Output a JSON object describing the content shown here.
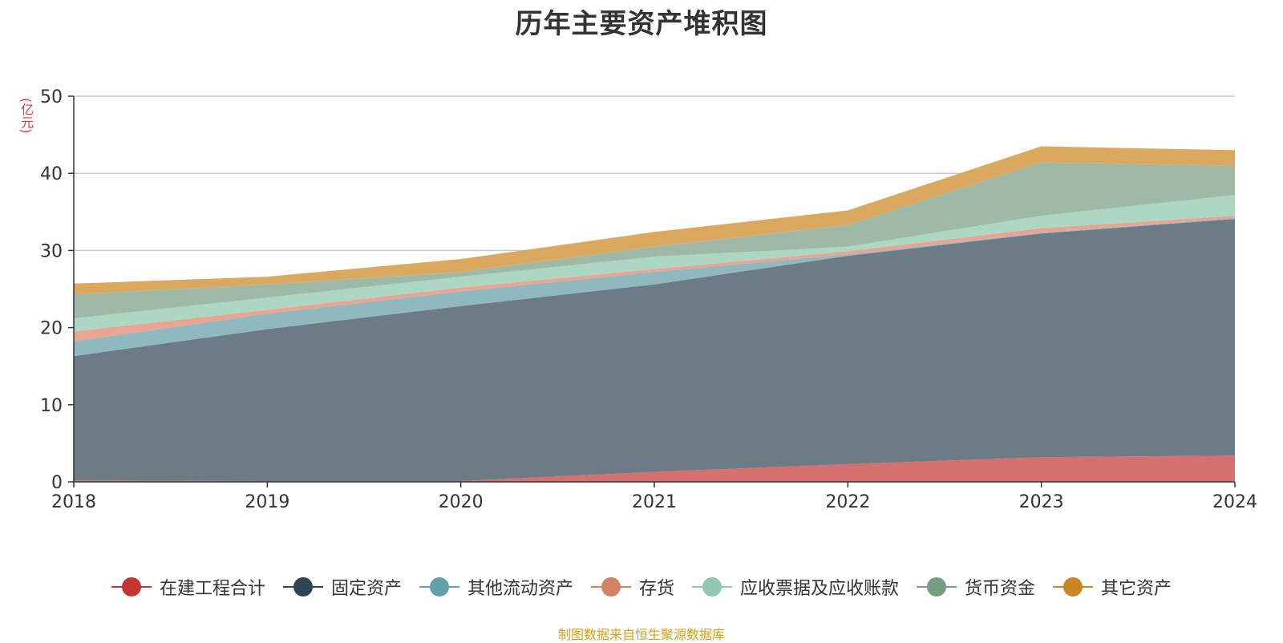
{
  "title": "历年主要资产堆积图",
  "unit": "(亿元)",
  "source": "制图数据来自恒生聚源数据库",
  "chart_data": {
    "type": "area",
    "stacked": true,
    "x": [
      "2018",
      "2019",
      "2020",
      "2021",
      "2022",
      "2023",
      "2024"
    ],
    "ylim": [
      0,
      50
    ],
    "yticks": [
      0,
      10,
      20,
      30,
      40,
      50
    ],
    "grid": true,
    "legend_position": "bottom",
    "series": [
      {
        "name": "在建工程合计",
        "color": "#c23531",
        "fill": "#d4706e",
        "values": [
          0.2,
          0.1,
          0.1,
          1.3,
          2.3,
          3.2,
          3.4
        ]
      },
      {
        "name": "固定资产",
        "color": "#2f4554",
        "fill": "#6d7b86",
        "values": [
          16.1,
          19.7,
          22.7,
          24.3,
          27.0,
          29.0,
          30.7
        ]
      },
      {
        "name": "其他流动资产",
        "color": "#61a0a8",
        "fill": "#8fb8bf",
        "values": [
          1.9,
          2.0,
          1.9,
          1.6,
          0.2,
          0.1,
          0.1
        ]
      },
      {
        "name": "存货",
        "color": "#d48265",
        "fill": "#e8a593",
        "values": [
          1.3,
          0.5,
          0.5,
          0.4,
          0.4,
          0.6,
          0.3
        ]
      },
      {
        "name": "应收票据及应收账款",
        "color": "#91c7ae",
        "fill": "#acd7c3",
        "values": [
          1.7,
          1.6,
          1.4,
          1.6,
          0.6,
          1.6,
          2.7
        ]
      },
      {
        "name": "货币资金",
        "color": "#749f83",
        "fill": "#9eb9a5",
        "values": [
          3.1,
          1.7,
          0.6,
          1.3,
          2.8,
          6.9,
          3.8
        ]
      },
      {
        "name": "其它资产",
        "color": "#ca8622",
        "fill": "#daa95f",
        "values": [
          1.4,
          1.0,
          1.7,
          1.9,
          1.9,
          2.1,
          2.0
        ]
      }
    ]
  }
}
